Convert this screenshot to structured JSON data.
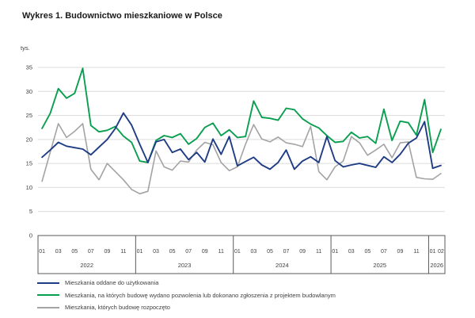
{
  "title": "Wykres 1. Budownictwo mieszkaniowe w Polsce",
  "chart_data": {
    "type": "line",
    "title": "Wykres 1. Budownictwo mieszkaniowe w Polsce",
    "ylabel": "tys.",
    "ylim": [
      0,
      35
    ],
    "yticks": [
      0,
      5,
      10,
      15,
      20,
      25,
      30,
      35
    ],
    "grid": true,
    "legend_position": "bottom-left",
    "colors": {
      "grid": "#dcdcdc",
      "axis_line": "#595959",
      "axis_text": "#404040"
    },
    "years": [
      {
        "label": "2022",
        "month_count": 12,
        "shown_months": [
          "01",
          "03",
          "05",
          "07",
          "09",
          "11"
        ]
      },
      {
        "label": "2023",
        "month_count": 12,
        "shown_months": [
          "01",
          "03",
          "05",
          "07",
          "09",
          "11"
        ]
      },
      {
        "label": "2024",
        "month_count": 12,
        "shown_months": [
          "01",
          "03",
          "05",
          "07",
          "09",
          "11"
        ]
      },
      {
        "label": "2025",
        "month_count": 12,
        "shown_months": [
          "01",
          "03",
          "05",
          "07",
          "09",
          "11"
        ]
      },
      {
        "label": "2026",
        "month_count": 2,
        "shown_months": [
          "01",
          "02"
        ]
      }
    ],
    "series": [
      {
        "id": "oddane",
        "name": "Mieszkania oddane do użytkowania",
        "color": "#1f3d85",
        "values": [
          16.3,
          17.8,
          19.4,
          18.6,
          18.3,
          18.0,
          16.8,
          18.4,
          20.0,
          22.3,
          25.5,
          23.0,
          19.0,
          15.2,
          19.5,
          20.0,
          17.3,
          18.0,
          15.8,
          17.3,
          15.3,
          20.1,
          16.9,
          20.6,
          14.5,
          15.4,
          16.3,
          14.7,
          13.8,
          15.2,
          17.8,
          13.8,
          15.5,
          16.4,
          15.2,
          20.6,
          15.6,
          14.3,
          14.7,
          15.0,
          14.6,
          14.2,
          16.4,
          15.2,
          16.9,
          19.2,
          20.3,
          23.7,
          14.0,
          14.6
        ]
      },
      {
        "id": "pozwolenia",
        "name": "Mieszkania, na których budowę wydano pozwolenia lub dokonano zgłoszenia z projektem budowlanym",
        "color": "#0a9e4f",
        "values": [
          22.3,
          25.4,
          30.6,
          28.6,
          29.6,
          34.8,
          22.9,
          21.6,
          21.9,
          22.7,
          20.7,
          19.4,
          15.5,
          15.2,
          19.8,
          20.8,
          20.4,
          21.2,
          19.0,
          20.2,
          22.5,
          23.4,
          20.8,
          22.0,
          20.4,
          20.6,
          28.0,
          24.6,
          24.4,
          24.0,
          26.5,
          26.2,
          24.3,
          23.2,
          22.4,
          20.8,
          19.4,
          19.6,
          21.5,
          20.3,
          20.6,
          19.2,
          26.3,
          19.8,
          23.8,
          23.5,
          20.9,
          28.3,
          17.3,
          22.1
        ]
      },
      {
        "id": "rozpoczete",
        "name": "Mieszkania, których budowę rozpoczęto",
        "color": "#a3a3a3",
        "values": [
          11.3,
          17.3,
          23.3,
          20.4,
          21.7,
          23.3,
          13.8,
          11.6,
          15.0,
          13.3,
          11.6,
          9.6,
          8.7,
          9.2,
          17.6,
          14.3,
          13.6,
          15.5,
          15.3,
          17.8,
          19.4,
          18.9,
          15.2,
          13.5,
          14.3,
          19.0,
          23.1,
          20.1,
          19.5,
          20.5,
          19.3,
          19.0,
          18.5,
          22.7,
          13.3,
          11.6,
          14.3,
          15.5,
          20.6,
          19.3,
          16.7,
          17.8,
          19.0,
          16.2,
          19.3,
          19.5,
          12.1,
          11.8,
          11.7,
          12.9
        ]
      }
    ]
  }
}
